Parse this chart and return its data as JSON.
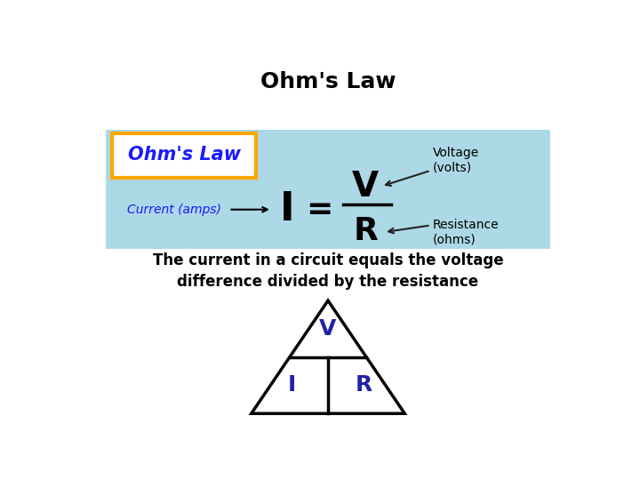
{
  "title": "Ohm's Law",
  "title_fontsize": 18,
  "title_fontweight": "bold",
  "bg_color": "#ffffff",
  "box_bg": "#add8e6",
  "ohms_law_label": "Ohm's Law",
  "ohms_law_color": "#1a1aff",
  "ohms_law_box_color": "#ffa500",
  "current_label": "Current (amps)",
  "current_color": "#1a1aff",
  "voltage_label": "Voltage\n(volts)",
  "resistance_label": "Resistance\n(ohms)",
  "formula_color": "#000000",
  "triangle_color": "#000000",
  "triangle_fill": "#ffffff",
  "vir_color": "#2222aa",
  "description_line1": "The current in a circuit equals the voltage",
  "description_line2": "difference divided by the resistance",
  "desc_fontsize": 12,
  "desc_fontweight": "bold"
}
